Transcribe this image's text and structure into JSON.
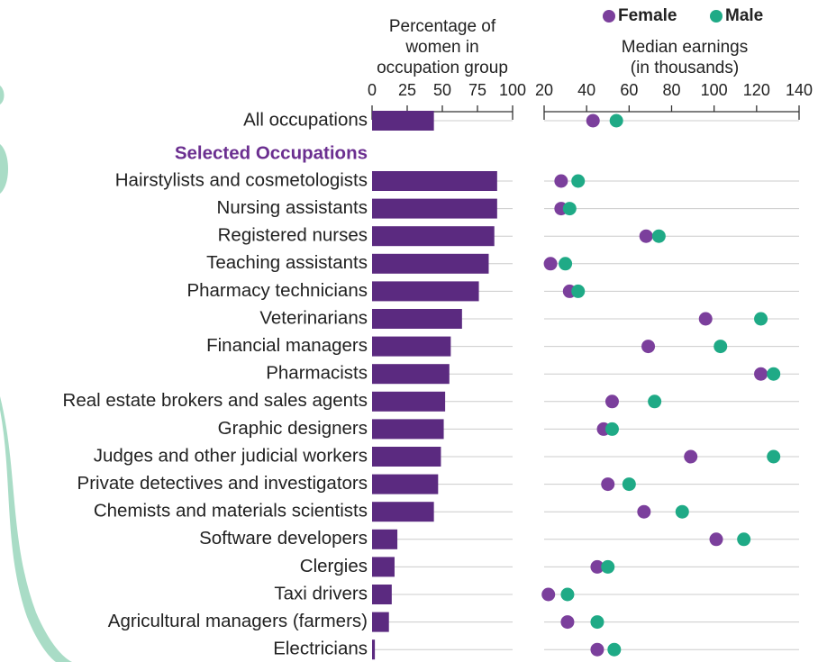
{
  "chart_data": [
    {
      "type": "bar",
      "title_lines": [
        "Percentage of",
        "women in",
        "occupation group"
      ],
      "section_label": "Selected Occupations",
      "categories": [
        "All occupations",
        "Hairstylists and cosmetologists",
        "Nursing assistants",
        "Registered nurses",
        "Teaching assistants",
        "Pharmacy technicians",
        "Veterinarians",
        "Financial managers",
        "Pharmacists",
        "Real estate brokers and sales agents",
        "Graphic designers",
        "Judges and other judicial workers",
        "Private detectives and investigators",
        "Chemists and materials scientists",
        "Software developers",
        "Clergies",
        "Taxi drivers",
        "Agricultural managers (farmers)",
        "Electricians"
      ],
      "values": [
        44,
        89,
        89,
        87,
        83,
        76,
        64,
        56,
        55,
        52,
        51,
        49,
        47,
        44,
        18,
        16,
        14,
        12,
        2
      ],
      "color": "#5b2a80",
      "xlim": [
        0,
        100
      ],
      "xticks": [
        0,
        25,
        50,
        75,
        100
      ]
    },
    {
      "type": "dot",
      "title_lines": [
        "Median earnings",
        "(in thousands)"
      ],
      "series": [
        {
          "name": "Female",
          "color": "#7b3f9c",
          "values": [
            43,
            28,
            28,
            68,
            23,
            32,
            96,
            69,
            122,
            52,
            48,
            89,
            50,
            67,
            101,
            45,
            22,
            31,
            45
          ]
        },
        {
          "name": "Male",
          "color": "#1faa86",
          "values": [
            54,
            36,
            32,
            74,
            30,
            36,
            122,
            103,
            128,
            72,
            52,
            128,
            60,
            85,
            114,
            50,
            31,
            45,
            53
          ]
        }
      ],
      "xlim": [
        20,
        140
      ],
      "xticks": [
        20,
        40,
        60,
        80,
        100,
        120,
        140
      ]
    }
  ]
}
